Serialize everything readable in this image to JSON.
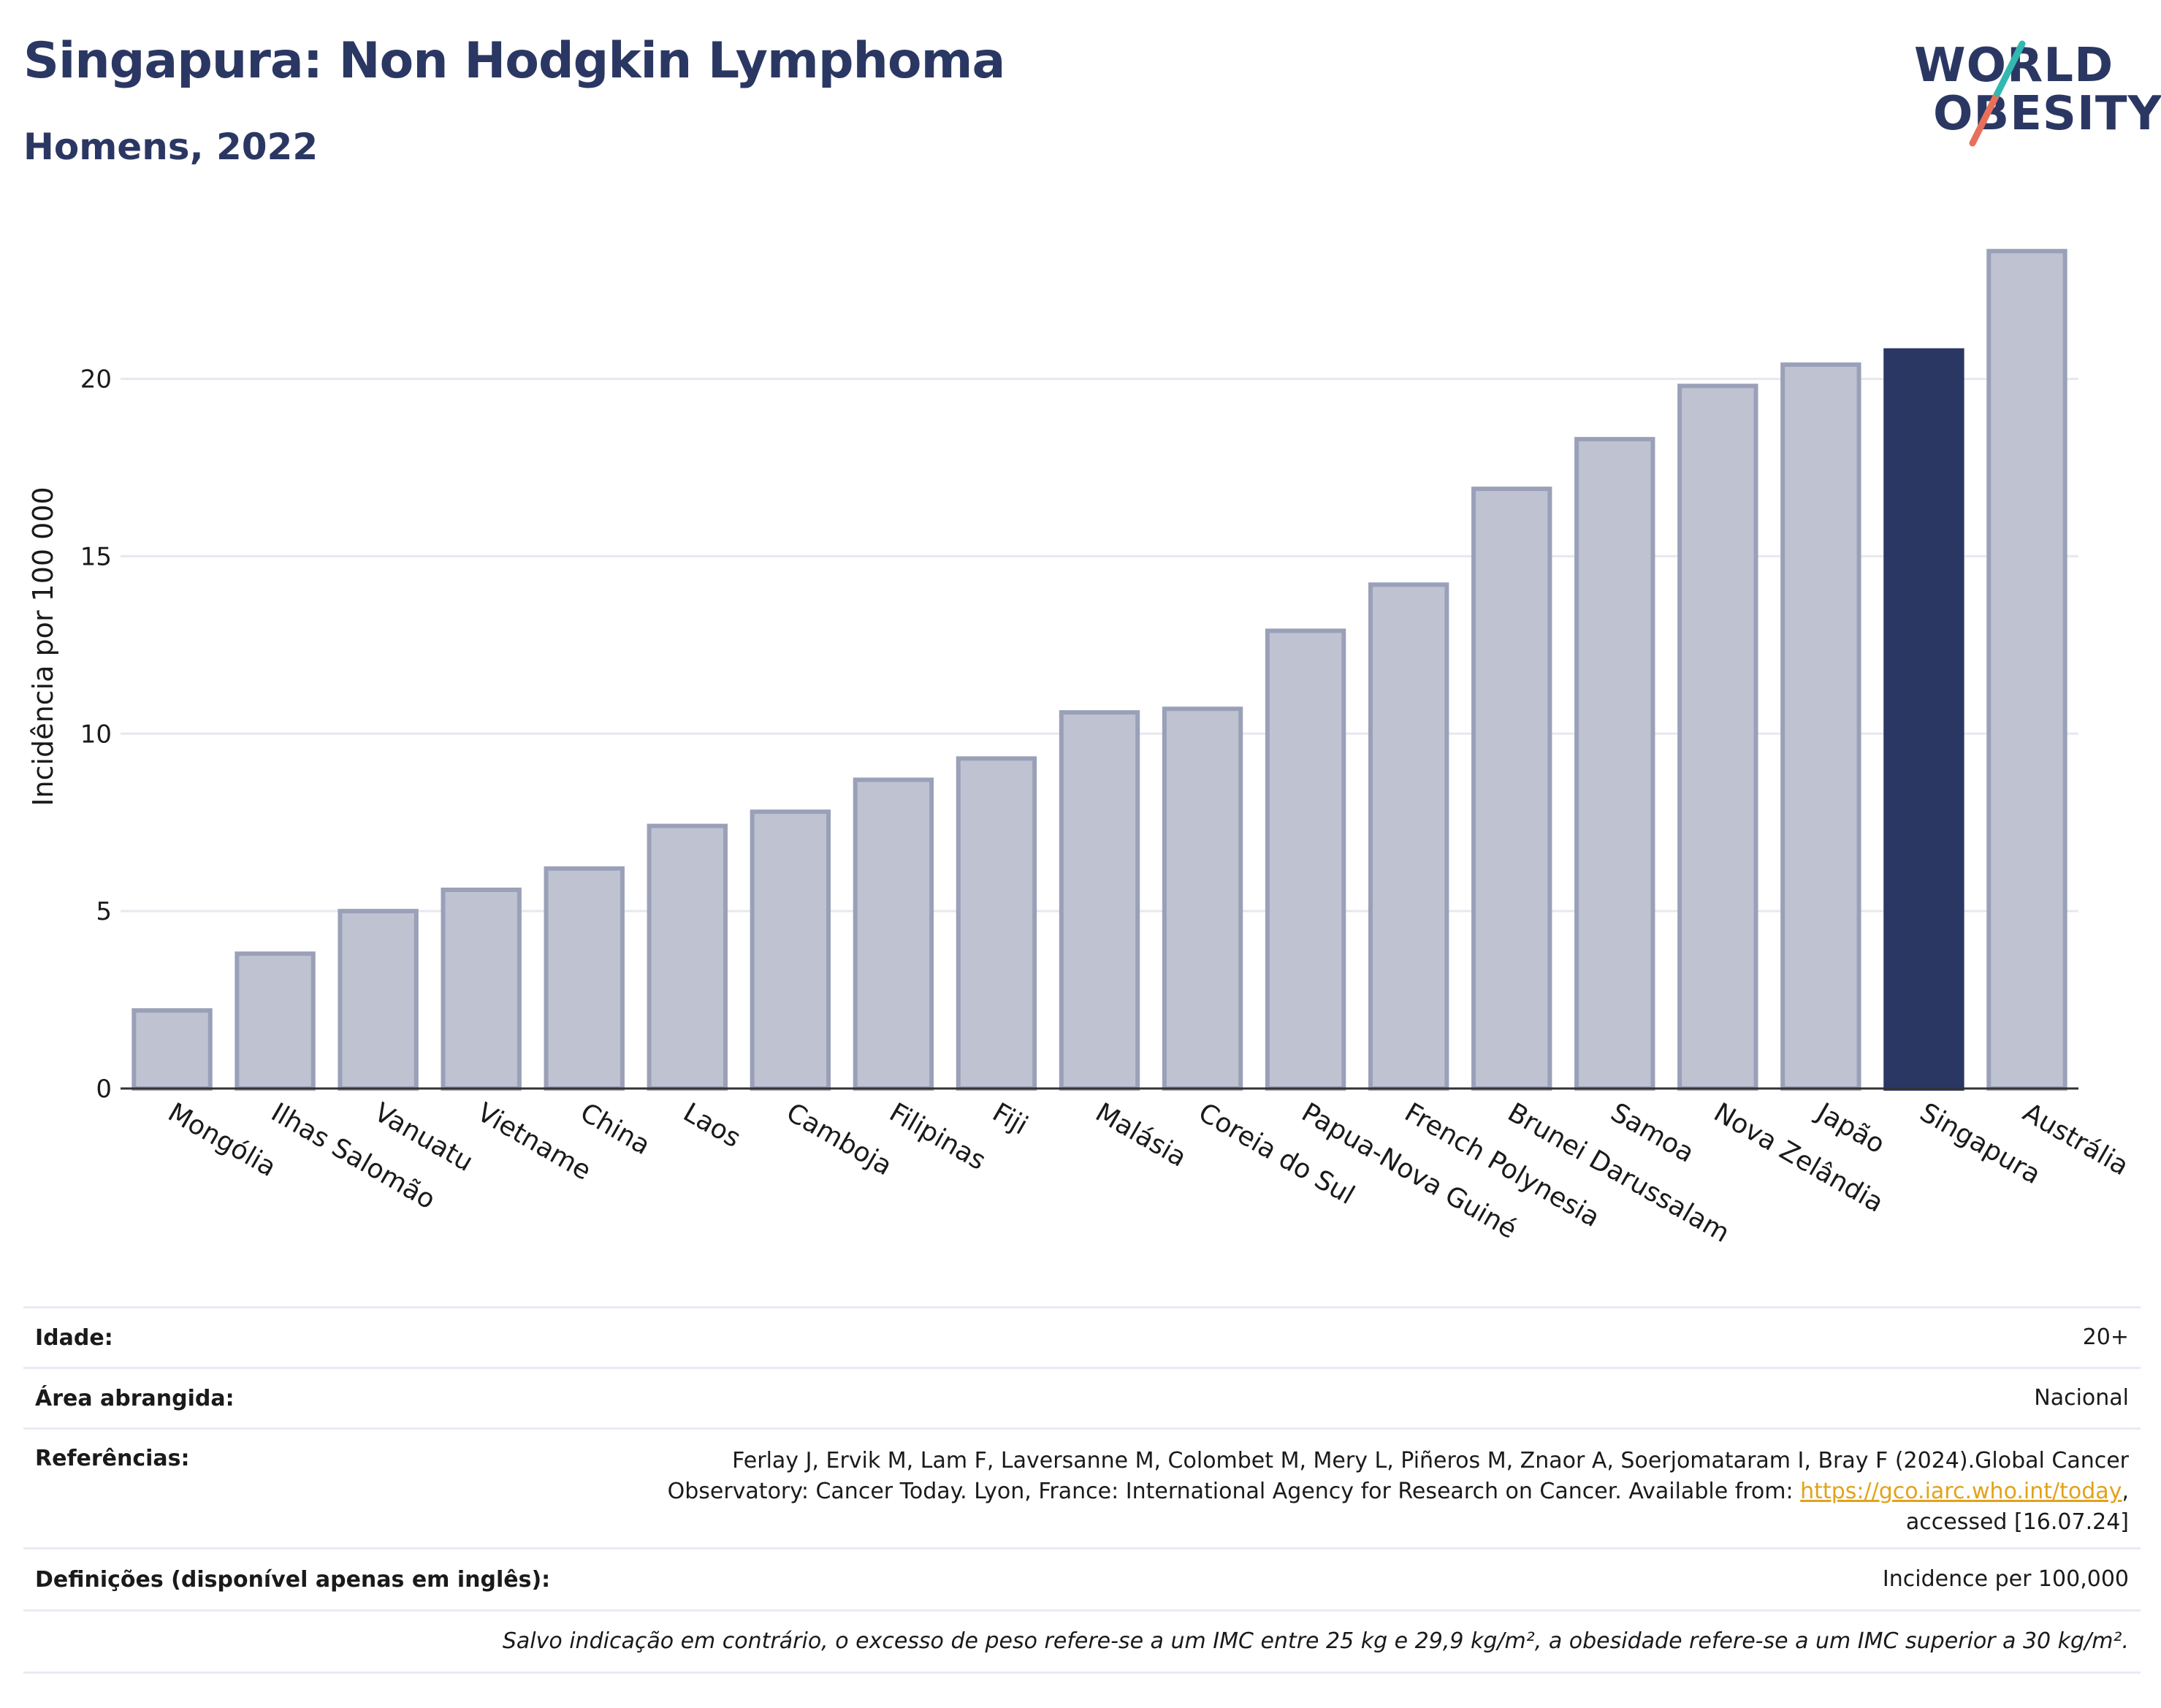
{
  "header": {
    "title": "Singapura: Non Hodgkin Lymphoma",
    "subtitle": "Homens, 2022"
  },
  "logo": {
    "line1": "WORLD",
    "line2": "OBESITY"
  },
  "chart_data": {
    "type": "bar",
    "ylabel": "Incidência por 100 000",
    "xlabel": "",
    "ylim": [
      0,
      24.5
    ],
    "yticks": [
      0,
      5,
      10,
      15,
      20
    ],
    "grid": true,
    "categories": [
      "Mongólia",
      "Ilhas Salomão",
      "Vanuatu",
      "Vietname",
      "China",
      "Laos",
      "Camboja",
      "Filipinas",
      "Fiji",
      "Malásia",
      "Coreia do Sul",
      "Papua-Nova Guiné",
      "French Polynesia",
      "Brunei Darussalam",
      "Samoa",
      "Nova Zelândia",
      "Japão",
      "Singapura",
      "Austrália"
    ],
    "values": [
      2.2,
      3.8,
      5.0,
      5.6,
      6.2,
      7.4,
      7.8,
      8.7,
      9.3,
      10.6,
      10.7,
      12.9,
      14.2,
      16.9,
      18.3,
      19.8,
      20.4,
      20.8,
      23.6
    ],
    "highlight": "Singapura",
    "colors": {
      "bar": "#bfc3d1",
      "bar_border": "#9aa0b8",
      "highlight": "#2b3763",
      "grid": "#e6e8ef",
      "axis": "#333333"
    }
  },
  "meta": {
    "age_label": "Idade:",
    "age_value": "20+",
    "area_label": "Área abrangida:",
    "area_value": "Nacional",
    "ref_label": "Referências:",
    "ref_line1": "Ferlay J, Ervik M, Lam F, Laversanne M, Colombet M, Mery L, Piñeros M, Znaor A, Soerjomataram I, Bray F (2024).Global Cancer",
    "ref_line2": "Observatory: Cancer Today. Lyon, France: International Agency for Research on Cancer. Available from:",
    "ref_link": "https://gco.iarc.who.int/today",
    "ref_line3": "accessed [16.07.24]",
    "def_label": "Definições (disponível apenas em inglês):",
    "def_value": "Incidence per 100,000",
    "note": "Salvo indicação em contrário, o excesso de peso refere-se a um IMC entre 25 kg e 29,9 kg/m², a obesidade refere-se a um IMC superior a 30 kg/m²."
  }
}
